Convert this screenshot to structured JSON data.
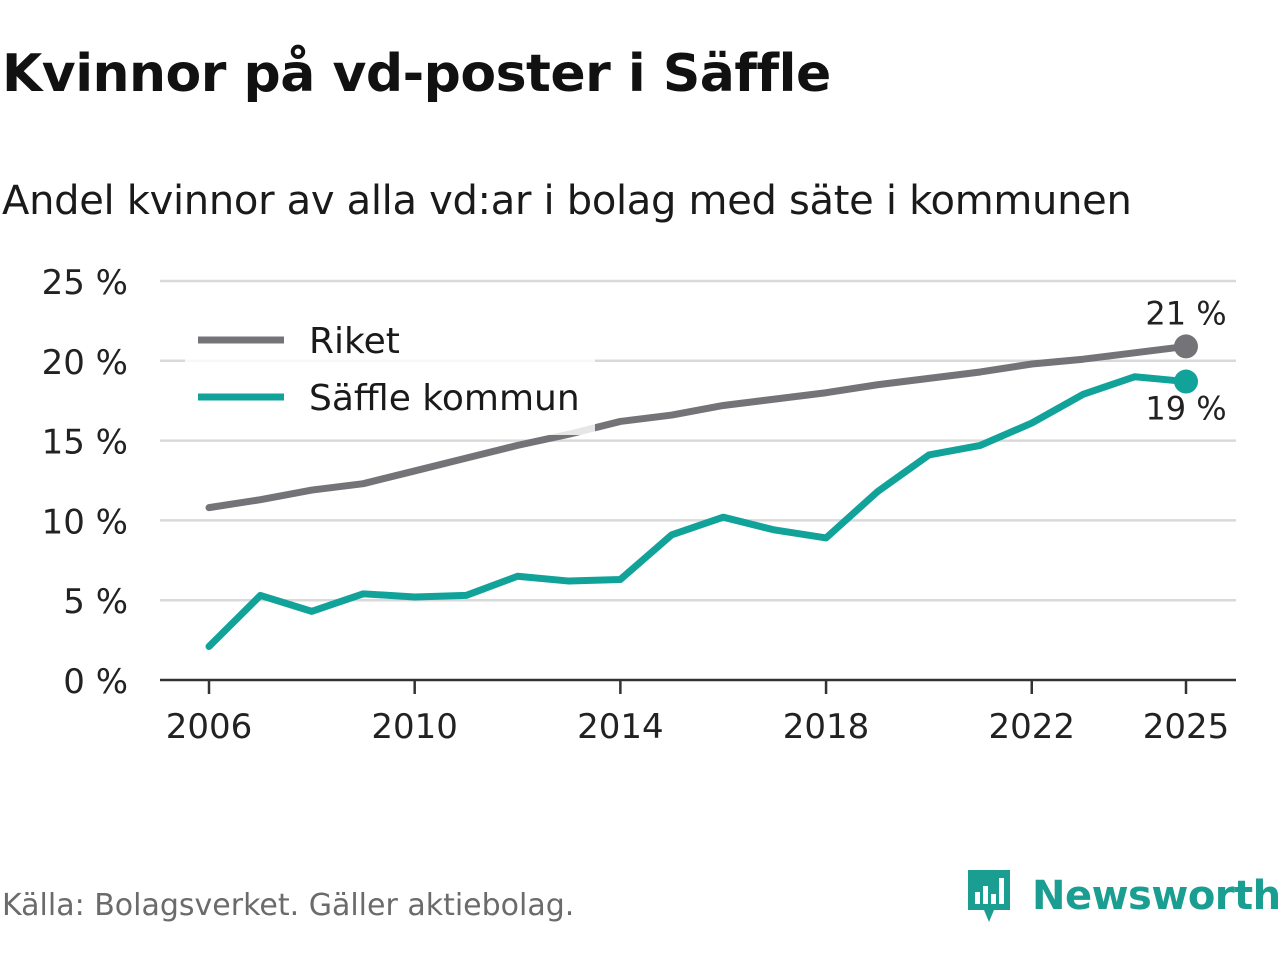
{
  "title": "Kvinnor på vd-poster i Säffle",
  "subtitle": "Andel kvinnor av alla vd:ar i bolag med säte i kommunen",
  "source": "Källa: Bolagsverket. Gäller aktiebolag.",
  "brand": "Newsworthy",
  "colors": {
    "riket": "#747378",
    "saffle": "#11a39a",
    "grid": "#d9d9d9",
    "axis": "#333333",
    "brand": "#1a9e91"
  },
  "chart_data": {
    "type": "line",
    "title": "Kvinnor på vd-poster i Säffle",
    "subtitle": "Andel kvinnor av alla vd:ar i bolag med säte i kommunen",
    "xlabel": "",
    "ylabel": "",
    "x": [
      2006,
      2007,
      2008,
      2009,
      2010,
      2011,
      2012,
      2013,
      2014,
      2015,
      2016,
      2017,
      2018,
      2019,
      2020,
      2021,
      2022,
      2023,
      2024,
      2025
    ],
    "xlim": [
      2006,
      2025
    ],
    "ylim": [
      0,
      25
    ],
    "x_ticks": [
      2006,
      2010,
      2014,
      2018,
      2022,
      2025
    ],
    "x_tick_labels": [
      "2006",
      "2010",
      "2014",
      "2018",
      "2022",
      "2025"
    ],
    "y_ticks": [
      0,
      5,
      10,
      15,
      20,
      25
    ],
    "y_tick_labels": [
      "0 %",
      "5 %",
      "10 %",
      "15 %",
      "20 %",
      "25 %"
    ],
    "grid": true,
    "legend": "top-left",
    "series": [
      {
        "name": "Riket",
        "values": [
          10.8,
          11.3,
          11.9,
          12.3,
          13.1,
          13.9,
          14.7,
          15.4,
          16.2,
          16.6,
          17.2,
          17.6,
          18.0,
          18.5,
          18.9,
          19.3,
          19.8,
          20.1,
          20.5,
          20.9
        ],
        "end_label": "21 %"
      },
      {
        "name": "Säffle kommun",
        "values": [
          2.1,
          5.3,
          4.3,
          5.4,
          5.2,
          5.3,
          6.5,
          6.2,
          6.3,
          9.1,
          10.2,
          9.4,
          8.9,
          11.8,
          14.1,
          14.7,
          16.1,
          17.9,
          19.0,
          18.7
        ],
        "end_label": "19 %"
      }
    ]
  }
}
